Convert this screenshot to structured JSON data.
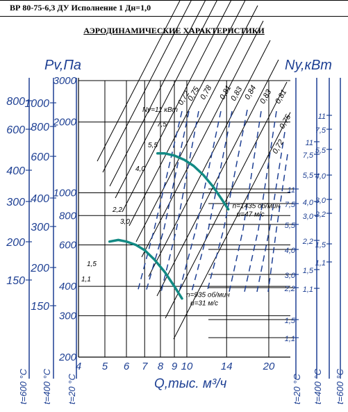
{
  "header": {
    "model_title": "ВР 80-75-6,3 ДУ Исполнение 1 Дн=1,0",
    "chart_title": "АЭРОДИНАМИЧЕСКИЕ ХАРАКТЕРИСТИКИ"
  },
  "colors": {
    "axis_blue": "#1d3f93",
    "curve_teal": "#128a84",
    "grid_black": "#000000"
  },
  "chart_data": {
    "type": "line",
    "xlabel": "Q,тыс. м³/ч",
    "ylabel_left": "Pv,Па",
    "ylabel_right": "Ny,кВт",
    "x_scale": "log",
    "y_scale": "log",
    "xlim": [
      4,
      24
    ],
    "ylim": [
      200,
      3000
    ],
    "x_ticks": [
      4,
      5,
      6,
      7,
      8,
      9,
      10,
      14,
      20
    ],
    "x_tick_labels": [
      "4",
      "5",
      "6",
      "7",
      "8",
      "9",
      "10",
      "14",
      "20"
    ],
    "y_ticks": [
      200,
      300,
      400,
      600,
      800,
      1000,
      2000,
      3000
    ],
    "y_tick_labels": [
      "200",
      "300",
      "400",
      "600",
      "800",
      "1000",
      "2000",
      "3000"
    ],
    "left_scale_1_labels": [
      "800",
      "600",
      "400",
      "300",
      "200",
      "150"
    ],
    "left_scale_2_labels": [
      "1000",
      "800",
      "600",
      "400",
      "300",
      "200",
      "150"
    ],
    "temperature_labels": [
      "t=600 °C",
      "t=400 °C",
      "t=20 °C"
    ],
    "efficiency_labels": [
      "0,72",
      "0,75",
      "0,78",
      "0,81",
      "0,83",
      "0,84",
      "0,83",
      "0,81",
      "0,75",
      "0,72"
    ],
    "power_labels_grid": [
      "Ny=11 кВт",
      "7,5",
      "5,5",
      "4,0",
      "3,0",
      "2,2",
      "1,5",
      "1,1"
    ],
    "power_scale_labels": [
      "11",
      "7,5",
      "5,5",
      "4,0",
      "3,0",
      "2,2",
      "1,5",
      "1,1"
    ],
    "series": [
      {
        "name": "n=1435 об/мин",
        "speed_label": "n=1435 об/мин",
        "u_label": "u=47 м/с",
        "x": [
          7.8,
          8.3,
          9.0,
          9.8,
          10.6,
          11.5,
          12.5,
          13.5,
          14.2
        ],
        "y": [
          1470,
          1470,
          1440,
          1380,
          1300,
          1190,
          1060,
          930,
          850
        ]
      },
      {
        "name": "n=935 об/мин",
        "speed_label": "n=935 об/мин",
        "u_label": "u=31 м/с",
        "x": [
          5.2,
          5.6,
          6.0,
          6.5,
          7.0,
          7.6,
          8.3,
          9.0,
          9.6
        ],
        "y": [
          620,
          630,
          620,
          600,
          570,
          520,
          460,
          400,
          355
        ]
      }
    ]
  }
}
